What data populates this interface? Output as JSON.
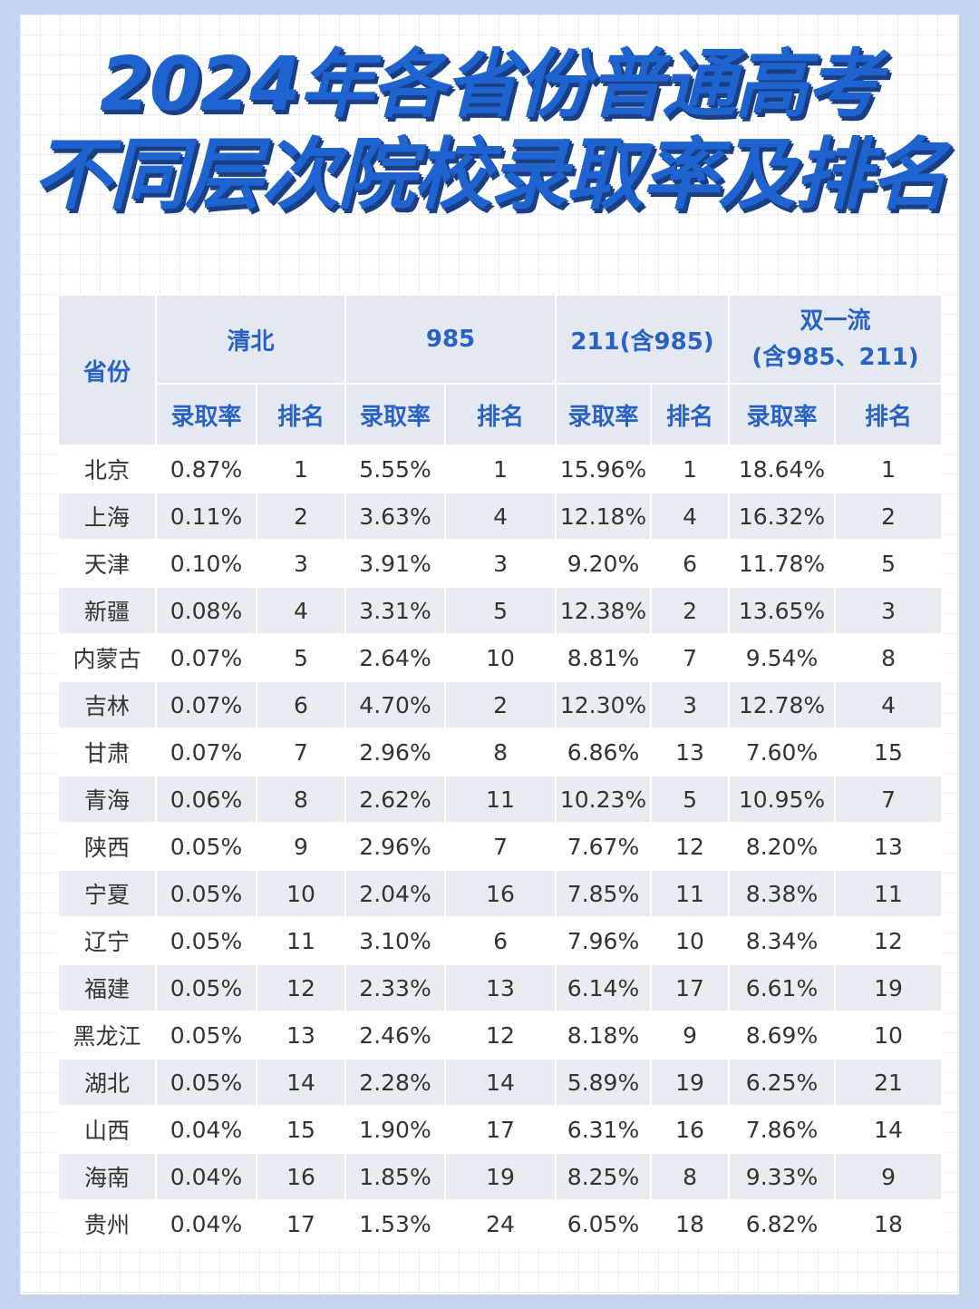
{
  "title": {
    "line1": "2024年各省份普通高考",
    "line2": "不同层次院校录取率及排名"
  },
  "table": {
    "header_province": "省份",
    "groups": [
      "清北",
      "985",
      "211(含985)",
      "双一流"
    ],
    "group4_sub": "(含985、211)",
    "rate_label": "录取率",
    "rank_label": "排名",
    "rows": [
      {
        "province": "北京",
        "qb_rate": "0.87%",
        "qb_rank": "1",
        "r985_rate": "5.55%",
        "r985_rank": "1",
        "r211_rate": "15.96%",
        "r211_rank": "1",
        "syl_rate": "18.64%",
        "syl_rank": "1"
      },
      {
        "province": "上海",
        "qb_rate": "0.11%",
        "qb_rank": "2",
        "r985_rate": "3.63%",
        "r985_rank": "4",
        "r211_rate": "12.18%",
        "r211_rank": "4",
        "syl_rate": "16.32%",
        "syl_rank": "2"
      },
      {
        "province": "天津",
        "qb_rate": "0.10%",
        "qb_rank": "3",
        "r985_rate": "3.91%",
        "r985_rank": "3",
        "r211_rate": "9.20%",
        "r211_rank": "6",
        "syl_rate": "11.78%",
        "syl_rank": "5"
      },
      {
        "province": "新疆",
        "qb_rate": "0.08%",
        "qb_rank": "4",
        "r985_rate": "3.31%",
        "r985_rank": "5",
        "r211_rate": "12.38%",
        "r211_rank": "2",
        "syl_rate": "13.65%",
        "syl_rank": "3"
      },
      {
        "province": "内蒙古",
        "qb_rate": "0.07%",
        "qb_rank": "5",
        "r985_rate": "2.64%",
        "r985_rank": "10",
        "r211_rate": "8.81%",
        "r211_rank": "7",
        "syl_rate": "9.54%",
        "syl_rank": "8"
      },
      {
        "province": "吉林",
        "qb_rate": "0.07%",
        "qb_rank": "6",
        "r985_rate": "4.70%",
        "r985_rank": "2",
        "r211_rate": "12.30%",
        "r211_rank": "3",
        "syl_rate": "12.78%",
        "syl_rank": "4"
      },
      {
        "province": "甘肃",
        "qb_rate": "0.07%",
        "qb_rank": "7",
        "r985_rate": "2.96%",
        "r985_rank": "8",
        "r211_rate": "6.86%",
        "r211_rank": "13",
        "syl_rate": "7.60%",
        "syl_rank": "15"
      },
      {
        "province": "青海",
        "qb_rate": "0.06%",
        "qb_rank": "8",
        "r985_rate": "2.62%",
        "r985_rank": "11",
        "r211_rate": "10.23%",
        "r211_rank": "5",
        "syl_rate": "10.95%",
        "syl_rank": "7"
      },
      {
        "province": "陕西",
        "qb_rate": "0.05%",
        "qb_rank": "9",
        "r985_rate": "2.96%",
        "r985_rank": "7",
        "r211_rate": "7.67%",
        "r211_rank": "12",
        "syl_rate": "8.20%",
        "syl_rank": "13"
      },
      {
        "province": "宁夏",
        "qb_rate": "0.05%",
        "qb_rank": "10",
        "r985_rate": "2.04%",
        "r985_rank": "16",
        "r211_rate": "7.85%",
        "r211_rank": "11",
        "syl_rate": "8.38%",
        "syl_rank": "11"
      },
      {
        "province": "辽宁",
        "qb_rate": "0.05%",
        "qb_rank": "11",
        "r985_rate": "3.10%",
        "r985_rank": "6",
        "r211_rate": "7.96%",
        "r211_rank": "10",
        "syl_rate": "8.34%",
        "syl_rank": "12"
      },
      {
        "province": "福建",
        "qb_rate": "0.05%",
        "qb_rank": "12",
        "r985_rate": "2.33%",
        "r985_rank": "13",
        "r211_rate": "6.14%",
        "r211_rank": "17",
        "syl_rate": "6.61%",
        "syl_rank": "19"
      },
      {
        "province": "黑龙江",
        "qb_rate": "0.05%",
        "qb_rank": "13",
        "r985_rate": "2.46%",
        "r985_rank": "12",
        "r211_rate": "8.18%",
        "r211_rank": "9",
        "syl_rate": "8.69%",
        "syl_rank": "10"
      },
      {
        "province": "湖北",
        "qb_rate": "0.05%",
        "qb_rank": "14",
        "r985_rate": "2.28%",
        "r985_rank": "14",
        "r211_rate": "5.89%",
        "r211_rank": "19",
        "syl_rate": "6.25%",
        "syl_rank": "21"
      },
      {
        "province": "山西",
        "qb_rate": "0.04%",
        "qb_rank": "15",
        "r985_rate": "1.90%",
        "r985_rank": "17",
        "r211_rate": "6.31%",
        "r211_rank": "16",
        "syl_rate": "7.86%",
        "syl_rank": "14"
      },
      {
        "province": "海南",
        "qb_rate": "0.04%",
        "qb_rank": "16",
        "r985_rate": "1.85%",
        "r985_rank": "19",
        "r211_rate": "8.25%",
        "r211_rank": "8",
        "syl_rate": "9.33%",
        "syl_rank": "9"
      },
      {
        "province": "贵州",
        "qb_rate": "0.04%",
        "qb_rank": "17",
        "r985_rate": "1.53%",
        "r985_rank": "24",
        "r211_rate": "6.05%",
        "r211_rank": "18",
        "syl_rate": "6.82%",
        "syl_rank": "18"
      }
    ]
  },
  "colors": {
    "accent_blue": "#2a62c4",
    "title_blue": "#1f63d1",
    "header_bg": "#e4e9f1",
    "stripe_bg": "#e7ecf3",
    "outer_bg": "#c6d5ef"
  }
}
